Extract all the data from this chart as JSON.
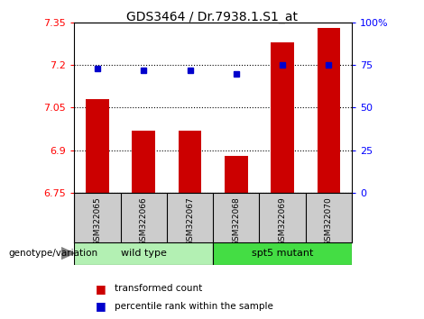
{
  "title": "GDS3464 / Dr.7938.1.S1_at",
  "samples": [
    "GSM322065",
    "GSM322066",
    "GSM322067",
    "GSM322068",
    "GSM322069",
    "GSM322070"
  ],
  "red_values": [
    7.08,
    6.97,
    6.97,
    6.88,
    7.28,
    7.33
  ],
  "blue_percentiles": [
    73,
    72,
    72,
    70,
    75,
    75
  ],
  "ylim_left": [
    6.75,
    7.35
  ],
  "ylim_right": [
    0,
    100
  ],
  "yticks_left": [
    6.75,
    6.9,
    7.05,
    7.2,
    7.35
  ],
  "ytick_labels_left": [
    "6.75",
    "6.9",
    "7.05",
    "7.2",
    "7.35"
  ],
  "yticks_right": [
    0,
    25,
    50,
    75,
    100
  ],
  "ytick_labels_right": [
    "0",
    "25",
    "50",
    "75",
    "100%"
  ],
  "hlines": [
    7.2,
    7.05,
    6.9,
    6.75
  ],
  "groups": [
    {
      "label": "wild type",
      "indices": [
        0,
        1,
        2
      ],
      "color": "#b3f0b3"
    },
    {
      "label": "spt5 mutant",
      "indices": [
        3,
        4,
        5
      ],
      "color": "#44dd44"
    }
  ],
  "bar_color": "#CC0000",
  "dot_color": "#0000CC",
  "bar_width": 0.5,
  "background_color": "#ffffff",
  "tick_label_area_color": "#cccccc",
  "legend_red_label": "transformed count",
  "legend_blue_label": "percentile rank within the sample",
  "genotype_label": "genotype/variation"
}
